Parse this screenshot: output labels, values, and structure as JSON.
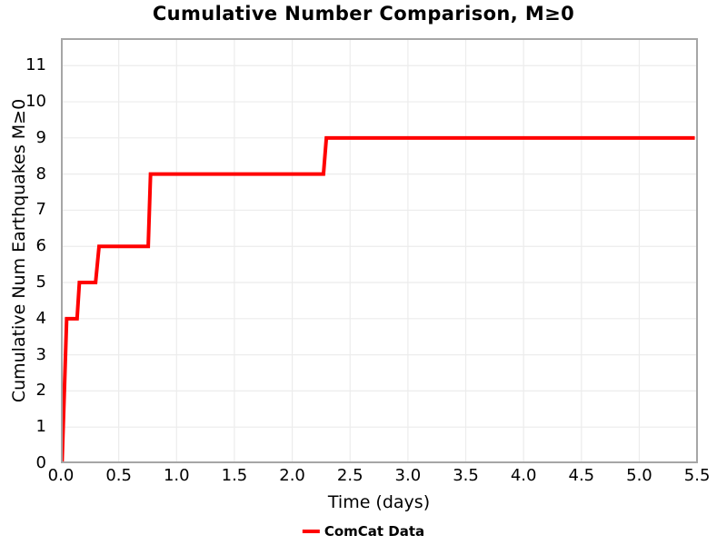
{
  "title": "Cumulative Number Comparison, M≥0",
  "colors": {
    "line": "#ff0000",
    "grid": "#ececec",
    "border": "#a6a6a6",
    "text": "#000000",
    "background": "#ffffff"
  },
  "chart_data": {
    "type": "line",
    "subtype": "cumulative-step",
    "title": "Cumulative Number Comparison, M≥0",
    "xlabel": "Time (days)",
    "ylabel": "Cumulative Num Earthquakes M≥0",
    "xlim": [
      0,
      5.507
    ],
    "ylim": [
      0,
      11.76
    ],
    "x_ticks": [
      0,
      0.5,
      1.0,
      1.5,
      2.0,
      2.5,
      3.0,
      3.5,
      4.0,
      4.5,
      5.0,
      5.5
    ],
    "x_tick_labels": [
      "0.0",
      "0.5",
      "1.0",
      "1.5",
      "2.0",
      "2.5",
      "3.0",
      "3.5",
      "4.0",
      "4.5",
      "5.0",
      "5.5"
    ],
    "y_ticks": [
      0,
      1,
      2,
      3,
      4,
      5,
      6,
      7,
      8,
      9,
      10,
      11
    ],
    "y_tick_labels": [
      "0",
      "1",
      "2",
      "3",
      "4",
      "5",
      "6",
      "7",
      "8",
      "9",
      "10",
      "11"
    ],
    "grid": true,
    "legend": {
      "position": "bottom-center",
      "entries": [
        {
          "label": "ComCat Data",
          "color": "#ff0000"
        }
      ]
    },
    "series": [
      {
        "name": "ComCat Data",
        "color": "#ff0000",
        "line_width": 4,
        "points": [
          [
            0.01,
            0
          ],
          [
            0.05,
            4
          ],
          [
            0.14,
            4
          ],
          [
            0.16,
            5
          ],
          [
            0.3,
            5
          ],
          [
            0.33,
            6
          ],
          [
            0.755,
            6
          ],
          [
            0.775,
            8
          ],
          [
            2.27,
            8
          ],
          [
            2.295,
            9
          ],
          [
            5.48,
            9
          ]
        ]
      }
    ]
  }
}
